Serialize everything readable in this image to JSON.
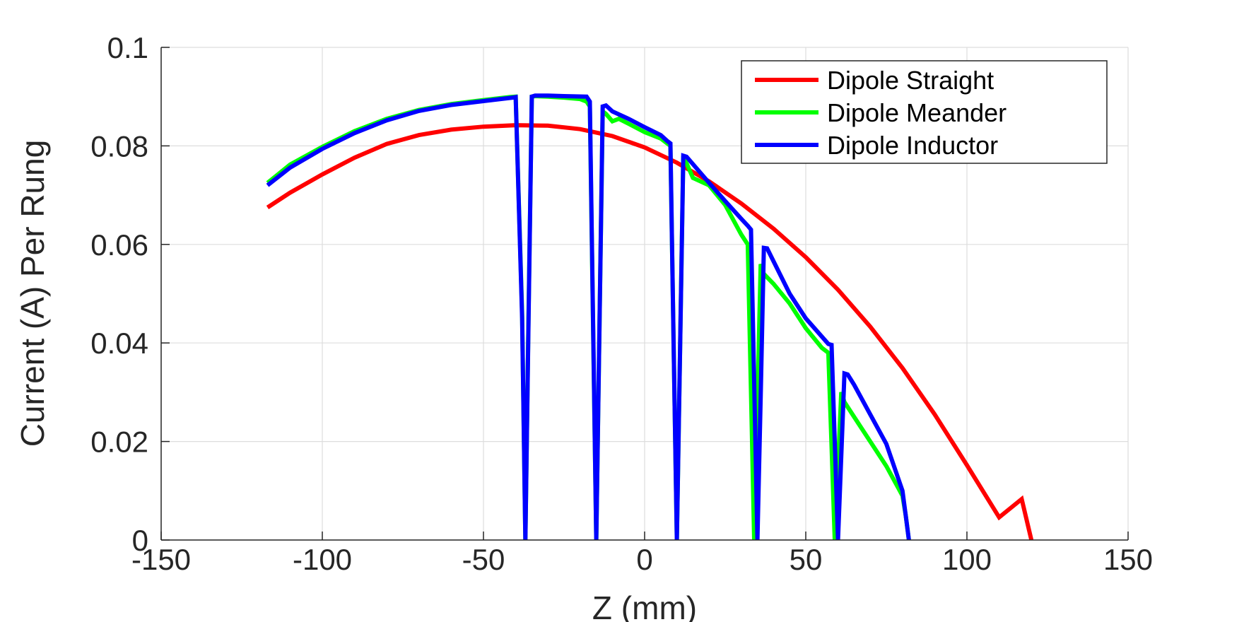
{
  "chart_data": {
    "type": "line",
    "title": "",
    "xlabel": "Z (mm)",
    "ylabel": "Current (A) Per Rung",
    "xlim": [
      -150,
      150
    ],
    "ylim": [
      0,
      0.1
    ],
    "xticks": [
      -150,
      -100,
      -50,
      0,
      50,
      100,
      150
    ],
    "xtick_labels": [
      "-150",
      "-100",
      "-50",
      "0",
      "50",
      "100",
      "150"
    ],
    "yticks": [
      0,
      0.02,
      0.04,
      0.06,
      0.08,
      0.1
    ],
    "ytick_labels": [
      "0",
      "0.02",
      "0.04",
      "0.06",
      "0.08",
      "0.1"
    ],
    "grid": true,
    "legend_position": "top-right",
    "series": [
      {
        "name": "Dipole Straight",
        "color": "#ff0000",
        "x": [
          -117,
          -110,
          -100,
          -90,
          -80,
          -70,
          -60,
          -50,
          -40,
          -30,
          -20,
          -10,
          0,
          10,
          20,
          30,
          40,
          50,
          60,
          70,
          80,
          90,
          100,
          110,
          117,
          120
        ],
        "y": [
          0.0675,
          0.0705,
          0.0742,
          0.0776,
          0.0804,
          0.0822,
          0.0833,
          0.0839,
          0.0842,
          0.0841,
          0.0834,
          0.082,
          0.0797,
          0.0766,
          0.0728,
          0.0683,
          0.0632,
          0.0574,
          0.0508,
          0.0433,
          0.0349,
          0.0255,
          0.0152,
          0.0046,
          0.0083,
          0.0
        ]
      },
      {
        "name": "Dipole Meander",
        "color": "#00ff00",
        "x": [
          -117,
          -110,
          -100,
          -90,
          -80,
          -70,
          -60,
          -50,
          -42,
          -40,
          -38,
          -37,
          -36,
          -35,
          -34,
          -30,
          -25,
          -20,
          -18,
          -17,
          -16,
          -15,
          -14,
          -13,
          -12,
          -10,
          -8,
          -5,
          0,
          5,
          8,
          9,
          10,
          11,
          12,
          15,
          20,
          25,
          30,
          32,
          33,
          34,
          35,
          36,
          37,
          40,
          45,
          50,
          55,
          57,
          58,
          59,
          60,
          61,
          62,
          65,
          70,
          75,
          80,
          81,
          82
        ],
        "y": [
          0.0725,
          0.0762,
          0.0798,
          0.083,
          0.0855,
          0.0873,
          0.0885,
          0.0893,
          0.0899,
          0.09,
          0.046,
          0.0,
          0.046,
          0.09,
          0.0901,
          0.09,
          0.0898,
          0.0895,
          0.089,
          0.088,
          0.044,
          0.0,
          0.044,
          0.087,
          0.0865,
          0.085,
          0.0855,
          0.0845,
          0.0828,
          0.0815,
          0.08,
          0.04,
          0.0,
          0.039,
          0.078,
          0.0735,
          0.072,
          0.068,
          0.062,
          0.06,
          0.03,
          0.0,
          0.028,
          0.056,
          0.054,
          0.052,
          0.048,
          0.043,
          0.039,
          0.038,
          0.019,
          0.0,
          0.015,
          0.03,
          0.028,
          0.025,
          0.02,
          0.015,
          0.009,
          0.005,
          0.0
        ]
      },
      {
        "name": "Dipole Inductor",
        "color": "#0000ff",
        "x": [
          -117,
          -110,
          -100,
          -90,
          -80,
          -70,
          -60,
          -50,
          -41,
          -40,
          -38,
          -37,
          -36,
          -35,
          -34,
          -30,
          -25,
          -18,
          -17,
          -16,
          -15,
          -14,
          -13,
          -12,
          -10,
          -5,
          0,
          5,
          7,
          8,
          9,
          10,
          11,
          12,
          13,
          20,
          25,
          30,
          32,
          33,
          34,
          35,
          36,
          37,
          38,
          45,
          50,
          57,
          58,
          59,
          60,
          61,
          62,
          63,
          65,
          70,
          75,
          80,
          81,
          82
        ],
        "y": [
          0.072,
          0.0756,
          0.0794,
          0.0826,
          0.0852,
          0.0871,
          0.0883,
          0.0891,
          0.0898,
          0.0899,
          0.045,
          0.0,
          0.045,
          0.09,
          0.0902,
          0.0902,
          0.0901,
          0.09,
          0.089,
          0.045,
          0.0,
          0.044,
          0.088,
          0.0882,
          0.087,
          0.0855,
          0.0838,
          0.0822,
          0.081,
          0.0805,
          0.04,
          0.0,
          0.039,
          0.078,
          0.0778,
          0.0725,
          0.0688,
          0.0652,
          0.0638,
          0.063,
          0.032,
          0.0,
          0.029,
          0.0593,
          0.0592,
          0.05,
          0.045,
          0.0398,
          0.0396,
          0.02,
          0.0,
          0.017,
          0.0338,
          0.0336,
          0.0315,
          0.0255,
          0.0195,
          0.01,
          0.005,
          0.0
        ]
      }
    ]
  }
}
